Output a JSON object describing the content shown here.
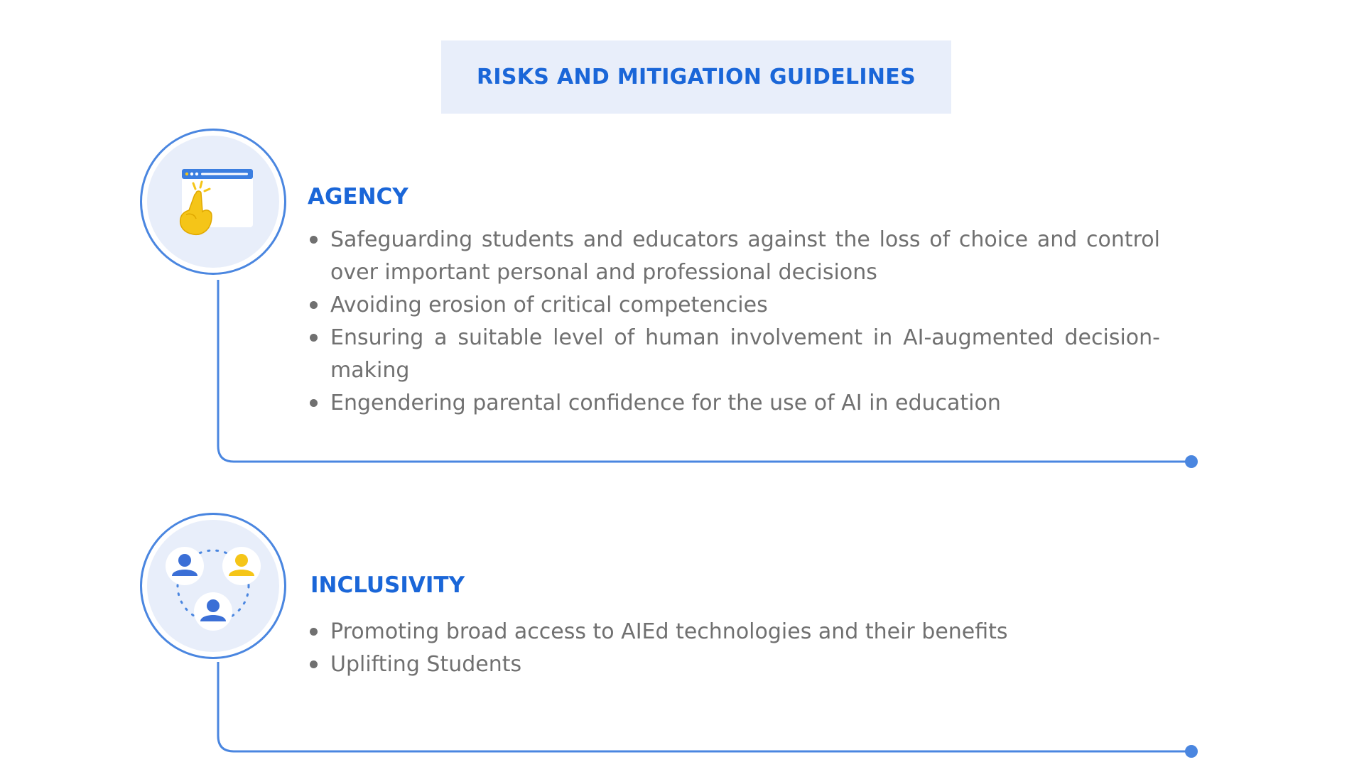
{
  "title": "RISKS AND MITIGATION GUIDELINES",
  "colors": {
    "accent": "#1a66d8",
    "line": "#4a86e0",
    "title_bg": "#e8eefa",
    "body_text": "#707070",
    "hand": "#f5c518"
  },
  "sections": [
    {
      "heading": "AGENCY",
      "icon": "browser-click-icon",
      "bullets": [
        "Safeguarding students and educators against the loss of choice and control over important personal and professional decisions",
        "Avoiding erosion of critical competencies",
        "Ensuring a suitable level of human involvement in AI-augmented decision-making",
        "Engendering parental confidence for the use of AI in education"
      ]
    },
    {
      "heading": "INCLUSIVITY",
      "icon": "people-group-icon",
      "bullets": [
        "Promoting broad access to AIEd technologies and their benefits",
        "Uplifting Students"
      ]
    }
  ]
}
